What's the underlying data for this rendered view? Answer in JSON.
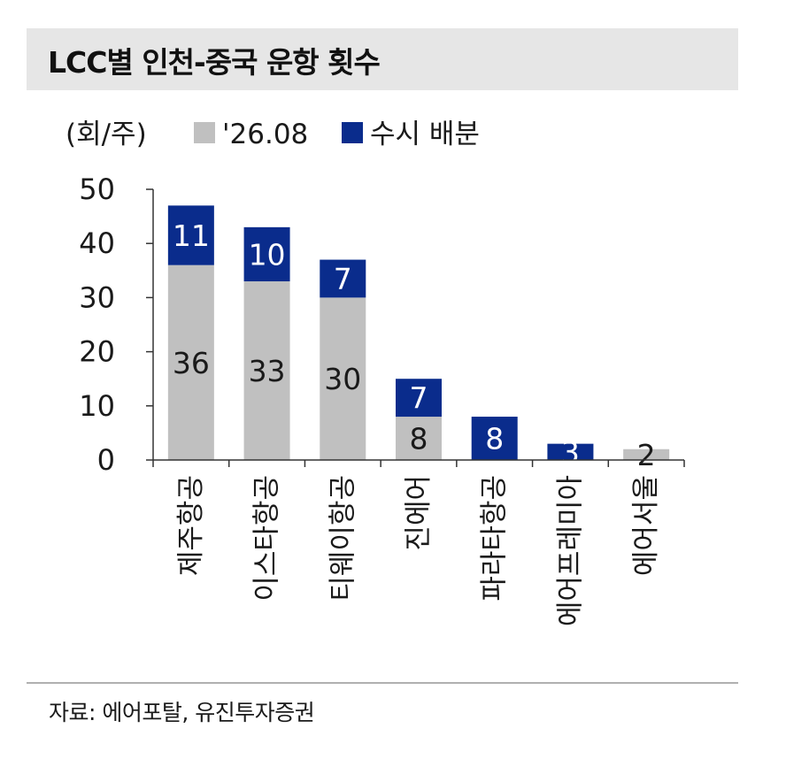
{
  "title": "LCC별 인천-중국 운항 횟수",
  "source": "자료: 에어포탈, 유진투자증권",
  "chart_data": {
    "type": "bar",
    "stacked": true,
    "unit_label": "(회/주)",
    "categories": [
      "제주항공",
      "이스타항공",
      "티웨이항공",
      "진에어",
      "파라타항공",
      "에어프레미아",
      "에어서울"
    ],
    "series": [
      {
        "name": "'26.08",
        "color": "#c0c0c0",
        "values": [
          36,
          33,
          30,
          8,
          0,
          0,
          2
        ]
      },
      {
        "name": "수시 배분",
        "color": "#0a2c8c",
        "values": [
          11,
          10,
          7,
          7,
          8,
          3,
          0
        ]
      }
    ],
    "yticks": [
      0,
      10,
      20,
      30,
      40,
      50
    ],
    "ylim": [
      0,
      50
    ],
    "legend_position": "top"
  }
}
